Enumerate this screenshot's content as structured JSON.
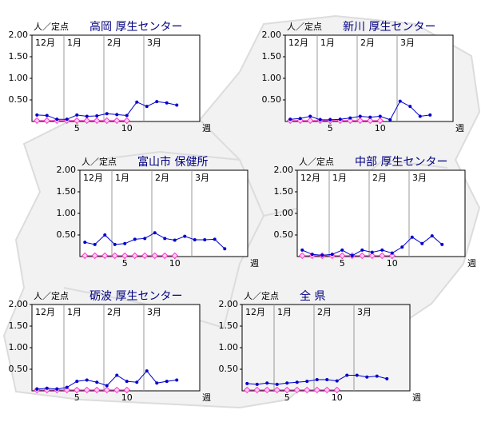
{
  "chart_data": [
    {
      "type": "line",
      "title": "高岡 厚生センター",
      "ylabel": "人／定点",
      "xlabel": "週",
      "xlim": [
        0.5,
        17.3
      ],
      "ylim": [
        0,
        2
      ],
      "xticks": [
        5,
        10
      ],
      "yticks": [
        {
          "value": 0.5,
          "label": "0.50"
        },
        {
          "value": 1,
          "label": "1.00"
        },
        {
          "value": 1.5,
          "label": "1.50"
        },
        {
          "value": 2,
          "label": "2.00"
        }
      ],
      "months": [
        {
          "label": "12月",
          "x": 0.5
        },
        {
          "label": "1月",
          "x": 3.7
        },
        {
          "label": "2月",
          "x": 7.7
        },
        {
          "label": "3月",
          "x": 11.7
        }
      ],
      "series": [
        {
          "color": "#ff33cc",
          "x": [
            1,
            2,
            3,
            4,
            5,
            6,
            7,
            8,
            9,
            10
          ],
          "values": [
            0.02,
            0.02,
            0.02,
            0.02,
            0.02,
            0.02,
            0.02,
            0.02,
            0.02,
            0.02
          ]
        },
        {
          "color": "#0000cc",
          "x": [
            1,
            2,
            3,
            4,
            5,
            6,
            7,
            8,
            9,
            10,
            11,
            12,
            13,
            14,
            15
          ],
          "values": [
            0.15,
            0.14,
            0.05,
            0.05,
            0.15,
            0.12,
            0.13,
            0.18,
            0.16,
            0.14,
            0.45,
            0.35,
            0.46,
            0.43,
            0.38
          ]
        }
      ]
    },
    {
      "type": "line",
      "title": "新川 厚生センター",
      "ylabel": "人／定点",
      "xlabel": "週",
      "xlim": [
        0.5,
        17.3
      ],
      "ylim": [
        0,
        2
      ],
      "xticks": [
        5,
        10
      ],
      "yticks": [
        {
          "value": 0.5,
          "label": "0.50"
        },
        {
          "value": 1,
          "label": "1.00"
        },
        {
          "value": 1.5,
          "label": "1.50"
        },
        {
          "value": 2,
          "label": "2.00"
        }
      ],
      "months": [
        {
          "label": "12月",
          "x": 0.5
        },
        {
          "label": "1月",
          "x": 3.7
        },
        {
          "label": "2月",
          "x": 7.7
        },
        {
          "label": "3月",
          "x": 11.7
        }
      ],
      "series": [
        {
          "color": "#ff33cc",
          "x": [
            1,
            2,
            3,
            4,
            5,
            6,
            7,
            8,
            9,
            10
          ],
          "values": [
            0.02,
            0.02,
            0.02,
            0.02,
            0.02,
            0.02,
            0.02,
            0.02,
            0.02,
            0.02
          ]
        },
        {
          "color": "#0000cc",
          "x": [
            1,
            2,
            3,
            4,
            5,
            6,
            7,
            8,
            9,
            10,
            11,
            12,
            13,
            14,
            15
          ],
          "values": [
            0.05,
            0.07,
            0.12,
            0.04,
            0.04,
            0.05,
            0.08,
            0.12,
            0.1,
            0.12,
            0.04,
            0.47,
            0.35,
            0.12,
            0.15
          ]
        }
      ]
    },
    {
      "type": "line",
      "title": "富山市 保健所",
      "ylabel": "人／定点",
      "xlabel": "週",
      "xlim": [
        0.5,
        17.3
      ],
      "ylim": [
        0,
        2
      ],
      "xticks": [
        5,
        10
      ],
      "yticks": [
        {
          "value": 0.5,
          "label": "0.50"
        },
        {
          "value": 1,
          "label": "1.00"
        },
        {
          "value": 1.5,
          "label": "1.50"
        },
        {
          "value": 2,
          "label": "2.00"
        }
      ],
      "months": [
        {
          "label": "12月",
          "x": 0.5
        },
        {
          "label": "1月",
          "x": 3.7
        },
        {
          "label": "2月",
          "x": 7.7
        },
        {
          "label": "3月",
          "x": 11.7
        }
      ],
      "series": [
        {
          "color": "#ff33cc",
          "x": [
            1,
            2,
            3,
            4,
            5,
            6,
            7,
            8,
            9,
            10
          ],
          "values": [
            0.02,
            0.02,
            0.02,
            0.02,
            0.02,
            0.02,
            0.02,
            0.02,
            0.02,
            0.02
          ]
        },
        {
          "color": "#0000cc",
          "x": [
            1,
            2,
            3,
            4,
            5,
            6,
            7,
            8,
            9,
            10,
            11,
            12,
            13,
            14,
            15
          ],
          "values": [
            0.33,
            0.28,
            0.5,
            0.28,
            0.3,
            0.4,
            0.42,
            0.55,
            0.42,
            0.38,
            0.47,
            0.39,
            0.39,
            0.4,
            0.18
          ]
        }
      ]
    },
    {
      "type": "line",
      "title": "中部 厚生センター",
      "ylabel": "人／定点",
      "xlabel": "週",
      "xlim": [
        0.5,
        17.3
      ],
      "ylim": [
        0,
        2
      ],
      "xticks": [
        5,
        10
      ],
      "yticks": [
        {
          "value": 0.5,
          "label": "0.50"
        },
        {
          "value": 1,
          "label": "1.00"
        },
        {
          "value": 1.5,
          "label": "1.50"
        },
        {
          "value": 2,
          "label": "2.00"
        }
      ],
      "months": [
        {
          "label": "12月",
          "x": 0.5
        },
        {
          "label": "1月",
          "x": 3.7
        },
        {
          "label": "2月",
          "x": 7.7
        },
        {
          "label": "3月",
          "x": 11.7
        }
      ],
      "series": [
        {
          "color": "#ff33cc",
          "x": [
            1,
            2,
            3,
            4,
            5,
            6,
            7,
            8,
            9,
            10
          ],
          "values": [
            0.02,
            0.02,
            0.02,
            0.02,
            0.02,
            0.02,
            0.02,
            0.02,
            0.02,
            0.02
          ]
        },
        {
          "color": "#0000cc",
          "x": [
            1,
            2,
            3,
            4,
            5,
            6,
            7,
            8,
            9,
            10,
            11,
            12,
            13,
            14,
            15
          ],
          "values": [
            0.15,
            0.05,
            0.03,
            0.05,
            0.15,
            0.02,
            0.15,
            0.1,
            0.15,
            0.08,
            0.22,
            0.45,
            0.3,
            0.48,
            0.28
          ]
        }
      ]
    },
    {
      "type": "line",
      "title": "砺波 厚生センター",
      "ylabel": "人／定点",
      "xlabel": "週",
      "xlim": [
        0.5,
        17.3
      ],
      "ylim": [
        0,
        2
      ],
      "xticks": [
        5,
        10
      ],
      "yticks": [
        {
          "value": 0.5,
          "label": "0.50"
        },
        {
          "value": 1,
          "label": "1.00"
        },
        {
          "value": 1.5,
          "label": "1.50"
        },
        {
          "value": 2,
          "label": "2.00"
        }
      ],
      "months": [
        {
          "label": "12月",
          "x": 0.5
        },
        {
          "label": "1月",
          "x": 3.7
        },
        {
          "label": "2月",
          "x": 7.7
        },
        {
          "label": "3月",
          "x": 11.7
        }
      ],
      "series": [
        {
          "color": "#ff33cc",
          "x": [
            1,
            2,
            3,
            4,
            5,
            6,
            7,
            8,
            9,
            10
          ],
          "values": [
            0.02,
            0.02,
            0.02,
            0.02,
            0.02,
            0.02,
            0.02,
            0.02,
            0.02,
            0.02
          ]
        },
        {
          "color": "#0000cc",
          "x": [
            1,
            2,
            3,
            4,
            5,
            6,
            7,
            8,
            9,
            10,
            11,
            12,
            13,
            14,
            15
          ],
          "values": [
            0.04,
            0.06,
            0.04,
            0.08,
            0.22,
            0.25,
            0.2,
            0.12,
            0.36,
            0.22,
            0.2,
            0.46,
            0.18,
            0.22,
            0.25
          ]
        }
      ]
    },
    {
      "type": "line",
      "title": "全 県",
      "ylabel": "人／定点",
      "xlabel": "週",
      "plot_color": "#f4f4f4",
      "xlim": [
        0.5,
        17.3
      ],
      "ylim": [
        0,
        2
      ],
      "xticks": [
        5,
        10
      ],
      "yticks": [
        {
          "value": 0.5,
          "label": "0.50"
        },
        {
          "value": 1,
          "label": "1.00"
        },
        {
          "value": 1.5,
          "label": "1.50"
        },
        {
          "value": 2,
          "label": "2.00"
        }
      ],
      "months": [
        {
          "label": "12月",
          "x": 0.5
        },
        {
          "label": "1月",
          "x": 3.7
        },
        {
          "label": "2月",
          "x": 7.7
        },
        {
          "label": "3月",
          "x": 11.7
        }
      ],
      "series": [
        {
          "color": "#ff33cc",
          "x": [
            1,
            2,
            3,
            4,
            5,
            6,
            7,
            8,
            9,
            10
          ],
          "values": [
            0.02,
            0.02,
            0.02,
            0.02,
            0.02,
            0.02,
            0.02,
            0.02,
            0.02,
            0.02
          ]
        },
        {
          "color": "#0000cc",
          "x": [
            1,
            2,
            3,
            4,
            5,
            6,
            7,
            8,
            9,
            10,
            11,
            12,
            13,
            14,
            15
          ],
          "values": [
            0.17,
            0.15,
            0.18,
            0.15,
            0.18,
            0.2,
            0.22,
            0.26,
            0.26,
            0.23,
            0.36,
            0.36,
            0.32,
            0.34,
            0.28
          ]
        }
      ]
    }
  ]
}
